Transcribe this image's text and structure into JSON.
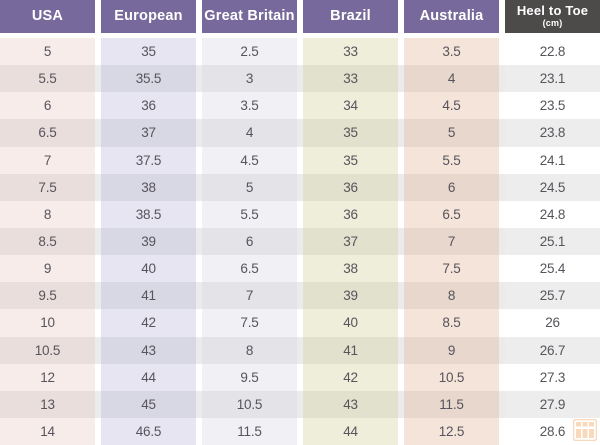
{
  "table": {
    "columns": [
      {
        "label": "USA"
      },
      {
        "label": "European"
      },
      {
        "label": "Great Britain"
      },
      {
        "label": "Brazil"
      },
      {
        "label": "Australia"
      },
      {
        "label": "Heel to Toe",
        "unit": "(cm)"
      }
    ],
    "rows": [
      [
        "5",
        "35",
        "2.5",
        "33",
        "3.5",
        "22.8"
      ],
      [
        "5.5",
        "35.5",
        "3",
        "33",
        "4",
        "23.1"
      ],
      [
        "6",
        "36",
        "3.5",
        "34",
        "4.5",
        "23.5"
      ],
      [
        "6.5",
        "37",
        "4",
        "35",
        "5",
        "23.8"
      ],
      [
        "7",
        "37.5",
        "4.5",
        "35",
        "5.5",
        "24.1"
      ],
      [
        "7.5",
        "38",
        "5",
        "36",
        "6",
        "24.5"
      ],
      [
        "8",
        "38.5",
        "5.5",
        "36",
        "6.5",
        "24.8"
      ],
      [
        "8.5",
        "39",
        "6",
        "37",
        "7",
        "25.1"
      ],
      [
        "9",
        "40",
        "6.5",
        "38",
        "7.5",
        "25.4"
      ],
      [
        "9.5",
        "41",
        "7",
        "39",
        "8",
        "25.7"
      ],
      [
        "10",
        "42",
        "7.5",
        "40",
        "8.5",
        "26"
      ],
      [
        "10.5",
        "43",
        "8",
        "41",
        "9",
        "26.7"
      ],
      [
        "12",
        "44",
        "9.5",
        "42",
        "10.5",
        "27.3"
      ],
      [
        "13",
        "45",
        "10.5",
        "43",
        "11.5",
        "27.9"
      ],
      [
        "14",
        "46.5",
        "11.5",
        "44",
        "12.5",
        "28.6"
      ]
    ]
  },
  "chart_data": {
    "type": "table",
    "columns": [
      "USA",
      "European",
      "Great Britain",
      "Brazil",
      "Australia",
      "Heel to Toe (cm)"
    ],
    "rows": [
      [
        "5",
        "35",
        "2.5",
        "33",
        "3.5",
        "22.8"
      ],
      [
        "5.5",
        "35.5",
        "3",
        "33",
        "4",
        "23.1"
      ],
      [
        "6",
        "36",
        "3.5",
        "34",
        "4.5",
        "23.5"
      ],
      [
        "6.5",
        "37",
        "4",
        "35",
        "5",
        "23.8"
      ],
      [
        "7",
        "37.5",
        "4.5",
        "35",
        "5.5",
        "24.1"
      ],
      [
        "7.5",
        "38",
        "5",
        "36",
        "6",
        "24.5"
      ],
      [
        "8",
        "38.5",
        "5.5",
        "36",
        "6.5",
        "24.8"
      ],
      [
        "8.5",
        "39",
        "6",
        "37",
        "7",
        "25.1"
      ],
      [
        "9",
        "40",
        "6.5",
        "38",
        "7.5",
        "25.4"
      ],
      [
        "9.5",
        "41",
        "7",
        "39",
        "8",
        "25.7"
      ],
      [
        "10",
        "42",
        "7.5",
        "40",
        "8.5",
        "26"
      ],
      [
        "10.5",
        "43",
        "8",
        "41",
        "9",
        "26.7"
      ],
      [
        "12",
        "44",
        "9.5",
        "42",
        "10.5",
        "27.3"
      ],
      [
        "13",
        "45",
        "10.5",
        "43",
        "11.5",
        "27.9"
      ],
      [
        "14",
        "46.5",
        "11.5",
        "44",
        "12.5",
        "28.6"
      ]
    ]
  },
  "colors": {
    "header_bg": "#77699b",
    "heel_header_bg": "#4d4a4a",
    "header_text": "#ffffff",
    "cell_text": "#57545b",
    "col_usa": "#f8ecea",
    "col_european": "#e6e5f1",
    "col_great_britain": "#f0f0f5",
    "col_brazil": "#efeeda",
    "col_australia": "#f4e4d9",
    "col_heel_to_toe": "#ffffff",
    "even_row_shade": "#ebebeb",
    "watermark_orange": "#ef8a2f"
  }
}
